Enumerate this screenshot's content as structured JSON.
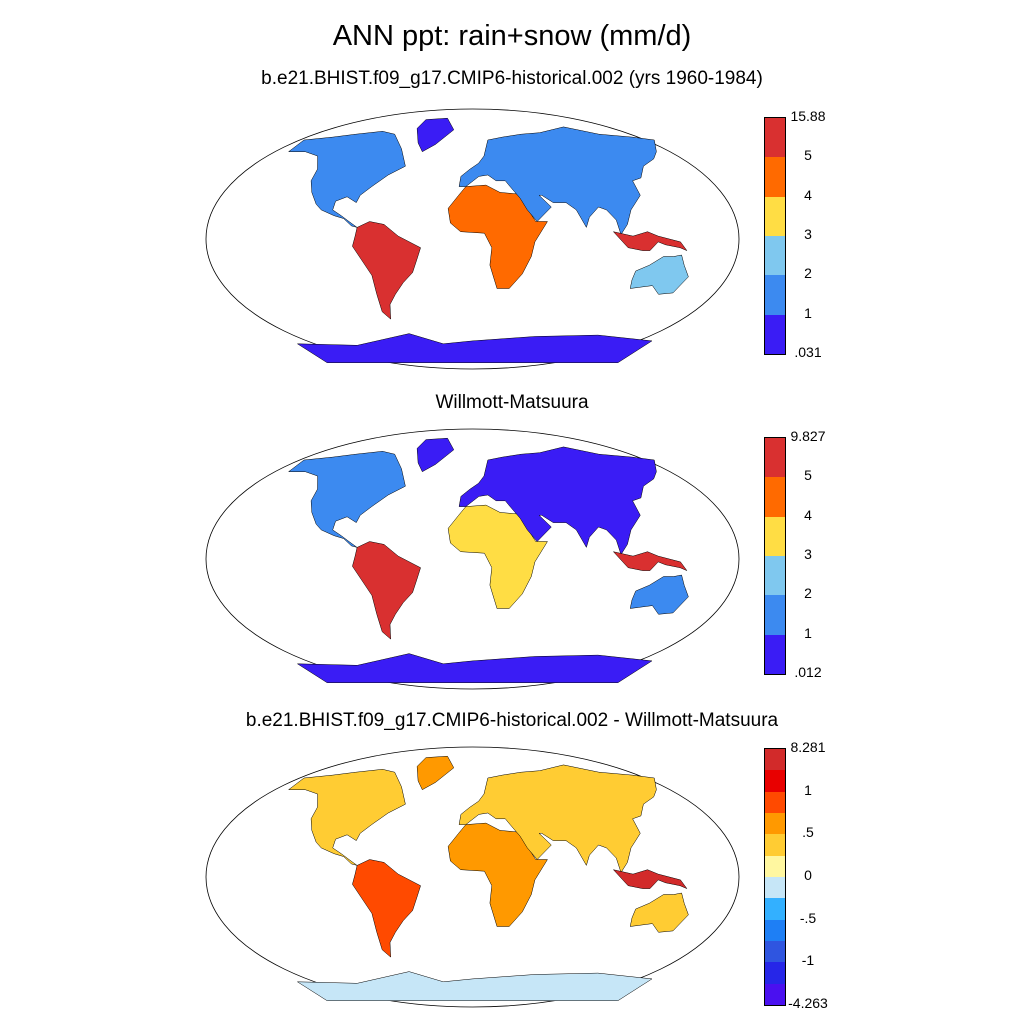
{
  "title": "ANN ppt: rain+snow (mm/d)",
  "panels": [
    {
      "subtitle": "b.e21.BHIST.f09_g17.CMIP6-historical.002 (yrs 1960-1984)",
      "colorbar": {
        "colors": [
          "#d93030",
          "#ff6a00",
          "#ffdd44",
          "#7fc8ef",
          "#3c8af0",
          "#3a1cf5"
        ],
        "labels": [
          "15.88",
          "5",
          "4",
          "3",
          "2",
          "1",
          ".031"
        ]
      }
    },
    {
      "subtitle": "Willmott-Matsuura",
      "colorbar": {
        "colors": [
          "#d93030",
          "#ff6a00",
          "#ffdd44",
          "#7fc8ef",
          "#3c8af0",
          "#3a1cf5"
        ],
        "labels": [
          "9.827",
          "5",
          "4",
          "3",
          "2",
          "1",
          ".012"
        ]
      }
    },
    {
      "subtitle": "b.e21.BHIST.f09_g17.CMIP6-historical.002 - Willmott-Matsuura",
      "colorbar": {
        "colors": [
          "#d22a2a",
          "#e80000",
          "#ff4a00",
          "#ff9900",
          "#ffcc33",
          "#fff7a0",
          "#c6e6f7",
          "#33b0ff",
          "#1e7ff5",
          "#2f55e0",
          "#2626e8",
          "#4a10f0"
        ],
        "labels": [
          "8.281",
          "",
          "1",
          "",
          ".5",
          "",
          "0",
          "",
          "-.5",
          "",
          "-1",
          "",
          "-4.263"
        ]
      }
    }
  ]
}
